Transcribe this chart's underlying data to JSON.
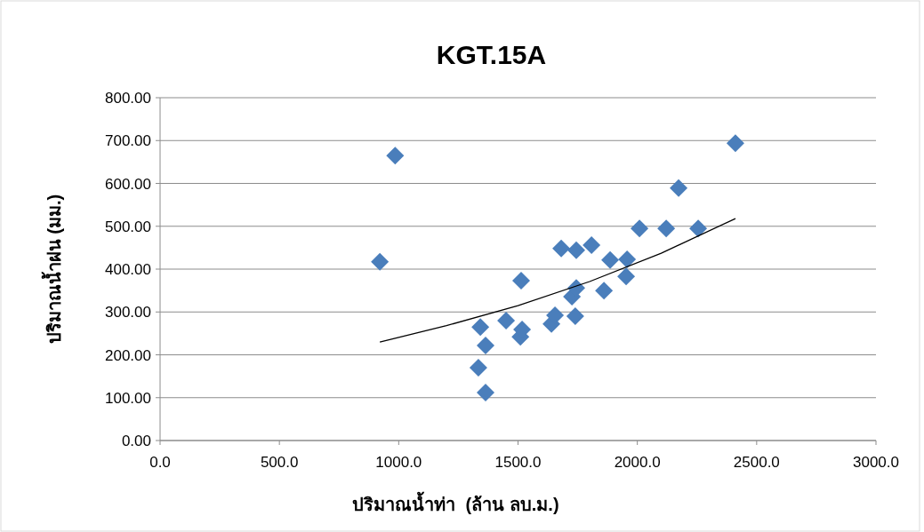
{
  "chart_data": {
    "type": "scatter",
    "title": "KGT.15A",
    "xlabel": "ปริมาณน้ำท่า  (ล้าน ลบ.ม.)",
    "ylabel": "ปริมาณน้ำฝน (มม.)",
    "xlim": [
      0,
      3000
    ],
    "ylim": [
      0,
      800
    ],
    "xticks": [
      {
        "value": 0,
        "label": "0.0"
      },
      {
        "value": 500,
        "label": "500.0"
      },
      {
        "value": 1000,
        "label": "1000.0"
      },
      {
        "value": 1500,
        "label": "1500.0"
      },
      {
        "value": 2000,
        "label": "2000.0"
      },
      {
        "value": 2500,
        "label": "2500.0"
      },
      {
        "value": 3000,
        "label": "3000.0"
      }
    ],
    "yticks": [
      {
        "value": 0,
        "label": "0.00"
      },
      {
        "value": 100,
        "label": "100.00"
      },
      {
        "value": 200,
        "label": "200.00"
      },
      {
        "value": 300,
        "label": "300.00"
      },
      {
        "value": 400,
        "label": "400.00"
      },
      {
        "value": 500,
        "label": "500.00"
      },
      {
        "value": 600,
        "label": "600.00"
      },
      {
        "value": 700,
        "label": "700.00"
      },
      {
        "value": 800,
        "label": "800.00"
      }
    ],
    "grid": "y",
    "series": [
      {
        "marker": "diamond",
        "color": "#4a7ebb",
        "x": [
          921,
          985,
          1334,
          1364,
          1364,
          1342,
          1450,
          1513,
          1510,
          1517,
          1640,
          1655,
          1681,
          1740,
          1726,
          1744,
          1744,
          1808,
          1860,
          1886,
          1957,
          1953,
          2009,
          2121,
          2173,
          2255,
          2411
        ],
        "values": [
          417,
          665,
          170,
          112,
          222,
          265,
          280,
          373,
          242,
          259,
          272,
          292,
          448,
          290,
          336,
          356,
          444,
          456,
          350,
          421,
          423,
          383,
          495,
          495,
          589,
          495,
          694
        ]
      },
      {
        "type": "line",
        "marker": "none",
        "line_style": "solid",
        "color": "#000000",
        "x": [
          921,
          1200,
          1500,
          1800,
          2100,
          2411
        ],
        "values": [
          230,
          268,
          315,
          371,
          437,
          518
        ]
      }
    ]
  }
}
